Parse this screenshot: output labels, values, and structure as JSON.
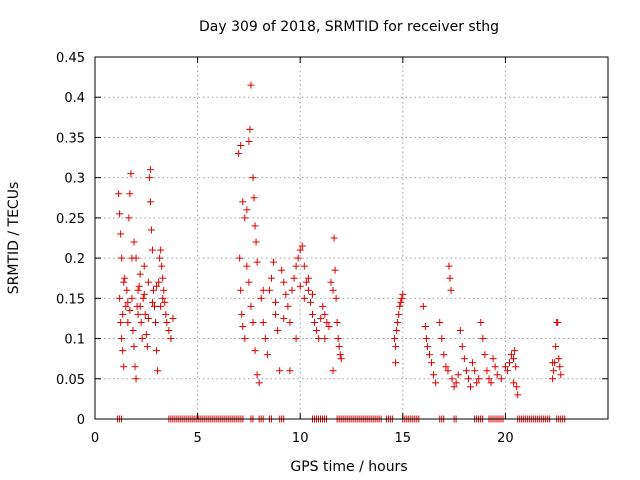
{
  "chart_data": {
    "type": "scatter",
    "title": "Day 309 of 2018, SRMTID for receiver sthg",
    "xlabel": "GPS time / hours",
    "ylabel": "SRMTID / TECUs",
    "xlim": [
      0,
      25
    ],
    "ylim": [
      0,
      0.45
    ],
    "xticks": [
      0,
      5,
      10,
      15,
      20
    ],
    "xtick_labels": [
      "0",
      "5",
      "10",
      "15",
      "20"
    ],
    "yticks": [
      0,
      0.05,
      0.1,
      0.15,
      0.2,
      0.25,
      0.3,
      0.35,
      0.4,
      0.45
    ],
    "ytick_labels": [
      "0",
      "0.05",
      "0.1",
      "0.15",
      "0.2",
      "0.25",
      "0.3",
      "0.35",
      "0.4",
      "0.45"
    ],
    "grid": true,
    "series": [
      {
        "name": "SRMTID",
        "color": "#e00000",
        "marker": "plus",
        "points": [
          [
            1.15,
            0.28
          ],
          [
            1.2,
            0.255
          ],
          [
            1.25,
            0.23
          ],
          [
            1.3,
            0.2
          ],
          [
            1.2,
            0.15
          ],
          [
            1.25,
            0.12
          ],
          [
            1.3,
            0.1
          ],
          [
            1.35,
            0.13
          ],
          [
            1.4,
            0.17
          ],
          [
            1.45,
            0.175
          ],
          [
            1.35,
            0.085
          ],
          [
            1.4,
            0.065
          ],
          [
            1.5,
            0.14
          ],
          [
            1.55,
            0.16
          ],
          [
            1.6,
            0.12
          ],
          [
            1.65,
            0.25
          ],
          [
            1.7,
            0.28
          ],
          [
            1.75,
            0.305
          ],
          [
            1.8,
            0.2
          ],
          [
            1.8,
            0.15
          ],
          [
            1.85,
            0.11
          ],
          [
            1.9,
            0.09
          ],
          [
            1.95,
            0.065
          ],
          [
            2.0,
            0.05
          ],
          [
            1.9,
            0.22
          ],
          [
            2.0,
            0.2
          ],
          [
            2.05,
            0.14
          ],
          [
            2.1,
            0.13
          ],
          [
            2.15,
            0.165
          ],
          [
            2.2,
            0.18
          ],
          [
            2.25,
            0.12
          ],
          [
            2.3,
            0.1
          ],
          [
            2.35,
            0.15
          ],
          [
            2.4,
            0.19
          ],
          [
            2.45,
            0.13
          ],
          [
            2.5,
            0.105
          ],
          [
            2.55,
            0.09
          ],
          [
            2.6,
            0.17
          ],
          [
            2.65,
            0.3
          ],
          [
            2.7,
            0.31
          ],
          [
            2.7,
            0.27
          ],
          [
            2.75,
            0.235
          ],
          [
            2.8,
            0.21
          ],
          [
            2.85,
            0.16
          ],
          [
            2.9,
            0.14
          ],
          [
            2.95,
            0.12
          ],
          [
            3.0,
            0.085
          ],
          [
            3.05,
            0.06
          ],
          [
            3.1,
            0.17
          ],
          [
            3.15,
            0.2
          ],
          [
            3.2,
            0.21
          ],
          [
            3.25,
            0.19
          ],
          [
            3.3,
            0.175
          ],
          [
            3.35,
            0.16
          ],
          [
            3.4,
            0.145
          ],
          [
            3.45,
            0.13
          ],
          [
            3.5,
            0.12
          ],
          [
            3.6,
            0.11
          ],
          [
            3.7,
            0.1
          ],
          [
            3.8,
            0.125
          ],
          [
            2.2,
            0.14
          ],
          [
            2.4,
            0.155
          ],
          [
            2.6,
            0.125
          ],
          [
            2.8,
            0.145
          ],
          [
            3.0,
            0.165
          ],
          [
            3.2,
            0.14
          ],
          [
            1.6,
            0.145
          ],
          [
            1.7,
            0.135
          ],
          [
            2.1,
            0.16
          ],
          [
            3.3,
            0.15
          ],
          [
            7.0,
            0.33
          ],
          [
            7.1,
            0.34
          ],
          [
            7.2,
            0.27
          ],
          [
            7.3,
            0.25
          ],
          [
            7.4,
            0.26
          ],
          [
            7.5,
            0.345
          ],
          [
            7.55,
            0.36
          ],
          [
            7.6,
            0.415
          ],
          [
            7.7,
            0.3
          ],
          [
            7.75,
            0.275
          ],
          [
            7.8,
            0.24
          ],
          [
            7.85,
            0.22
          ],
          [
            7.9,
            0.195
          ],
          [
            7.05,
            0.2
          ],
          [
            7.1,
            0.16
          ],
          [
            7.15,
            0.13
          ],
          [
            7.2,
            0.115
          ],
          [
            7.3,
            0.1
          ],
          [
            7.4,
            0.19
          ],
          [
            7.5,
            0.17
          ],
          [
            7.6,
            0.14
          ],
          [
            7.7,
            0.12
          ],
          [
            7.8,
            0.085
          ],
          [
            7.9,
            0.055
          ],
          [
            8.0,
            0.045
          ],
          [
            8.1,
            0.15
          ],
          [
            8.2,
            0.12
          ],
          [
            8.3,
            0.1
          ],
          [
            8.4,
            0.08
          ],
          [
            8.5,
            0.16
          ],
          [
            8.6,
            0.175
          ],
          [
            8.7,
            0.195
          ],
          [
            8.8,
            0.13
          ],
          [
            8.9,
            0.11
          ],
          [
            9.0,
            0.06
          ],
          [
            9.1,
            0.185
          ],
          [
            9.2,
            0.17
          ],
          [
            9.3,
            0.155
          ],
          [
            9.4,
            0.14
          ],
          [
            9.5,
            0.12
          ],
          [
            9.6,
            0.16
          ],
          [
            9.7,
            0.175
          ],
          [
            9.8,
            0.19
          ],
          [
            9.9,
            0.2
          ],
          [
            10.0,
            0.21
          ],
          [
            10.1,
            0.215
          ],
          [
            10.2,
            0.19
          ],
          [
            10.3,
            0.17
          ],
          [
            10.4,
            0.16
          ],
          [
            10.5,
            0.145
          ],
          [
            10.6,
            0.13
          ],
          [
            10.7,
            0.12
          ],
          [
            10.8,
            0.11
          ],
          [
            10.9,
            0.1
          ],
          [
            11.0,
            0.125
          ],
          [
            11.1,
            0.14
          ],
          [
            11.2,
            0.13
          ],
          [
            11.3,
            0.12
          ],
          [
            11.4,
            0.115
          ],
          [
            11.5,
            0.17
          ],
          [
            11.6,
            0.16
          ],
          [
            11.65,
            0.225
          ],
          [
            11.7,
            0.185
          ],
          [
            11.75,
            0.15
          ],
          [
            11.8,
            0.12
          ],
          [
            11.85,
            0.1
          ],
          [
            11.9,
            0.09
          ],
          [
            11.95,
            0.08
          ],
          [
            12.0,
            0.075
          ],
          [
            11.6,
            0.06
          ],
          [
            9.5,
            0.06
          ],
          [
            9.8,
            0.1
          ],
          [
            10.2,
            0.15
          ],
          [
            10.6,
            0.155
          ],
          [
            9.2,
            0.125
          ],
          [
            8.2,
            0.16
          ],
          [
            8.8,
            0.145
          ],
          [
            10.0,
            0.165
          ],
          [
            10.4,
            0.175
          ],
          [
            11.2,
            0.1
          ],
          [
            14.6,
            0.1
          ],
          [
            14.65,
            0.09
          ],
          [
            14.7,
            0.11
          ],
          [
            14.75,
            0.12
          ],
          [
            14.8,
            0.13
          ],
          [
            14.85,
            0.14
          ],
          [
            14.9,
            0.145
          ],
          [
            14.95,
            0.15
          ],
          [
            15.0,
            0.155
          ],
          [
            14.65,
            0.07
          ],
          [
            16.0,
            0.14
          ],
          [
            16.1,
            0.115
          ],
          [
            16.15,
            0.1
          ],
          [
            16.2,
            0.09
          ],
          [
            16.3,
            0.08
          ],
          [
            16.4,
            0.07
          ],
          [
            16.5,
            0.055
          ],
          [
            16.6,
            0.045
          ],
          [
            16.8,
            0.12
          ],
          [
            16.9,
            0.1
          ],
          [
            17.0,
            0.08
          ],
          [
            17.1,
            0.065
          ],
          [
            17.2,
            0.06
          ],
          [
            17.25,
            0.19
          ],
          [
            17.3,
            0.175
          ],
          [
            17.35,
            0.16
          ],
          [
            17.4,
            0.05
          ],
          [
            17.5,
            0.04
          ],
          [
            17.6,
            0.045
          ],
          [
            17.7,
            0.055
          ],
          [
            17.8,
            0.11
          ],
          [
            17.9,
            0.09
          ],
          [
            18.0,
            0.075
          ],
          [
            18.1,
            0.06
          ],
          [
            18.2,
            0.05
          ],
          [
            18.3,
            0.04
          ],
          [
            18.4,
            0.07
          ],
          [
            18.5,
            0.06
          ],
          [
            18.6,
            0.045
          ],
          [
            18.7,
            0.05
          ],
          [
            18.8,
            0.12
          ],
          [
            18.9,
            0.1
          ],
          [
            19.0,
            0.08
          ],
          [
            19.1,
            0.06
          ],
          [
            19.2,
            0.05
          ],
          [
            19.3,
            0.045
          ],
          [
            19.4,
            0.075
          ],
          [
            19.5,
            0.065
          ],
          [
            19.6,
            0.055
          ],
          [
            19.8,
            0.05
          ],
          [
            20.0,
            0.065
          ],
          [
            20.1,
            0.06
          ],
          [
            20.2,
            0.07
          ],
          [
            20.3,
            0.08
          ],
          [
            20.4,
            0.075
          ],
          [
            20.45,
            0.085
          ],
          [
            20.5,
            0.065
          ],
          [
            20.55,
            0.04
          ],
          [
            20.6,
            0.03
          ],
          [
            20.4,
            0.045
          ],
          [
            22.3,
            0.05
          ],
          [
            22.35,
            0.06
          ],
          [
            22.4,
            0.07
          ],
          [
            22.45,
            0.09
          ],
          [
            22.5,
            0.12
          ],
          [
            22.55,
            0.12
          ],
          [
            22.6,
            0.075
          ],
          [
            22.65,
            0.065
          ],
          [
            22.7,
            0.055
          ],
          [
            22.3,
            0.07
          ]
        ]
      }
    ],
    "zero_intervals": [
      [
        1.1,
        1.3
      ],
      [
        3.6,
        7.3
      ],
      [
        7.6,
        7.7
      ],
      [
        8.0,
        8.2
      ],
      [
        8.5,
        8.6
      ],
      [
        9.0,
        9.2
      ],
      [
        10.6,
        11.3
      ],
      [
        11.8,
        14.0
      ],
      [
        14.2,
        14.5
      ],
      [
        15.0,
        15.8
      ],
      [
        16.8,
        17.0
      ],
      [
        17.5,
        17.6
      ],
      [
        18.5,
        18.9
      ],
      [
        19.2,
        19.9
      ],
      [
        20.6,
        22.2
      ],
      [
        22.5,
        22.9
      ]
    ]
  }
}
